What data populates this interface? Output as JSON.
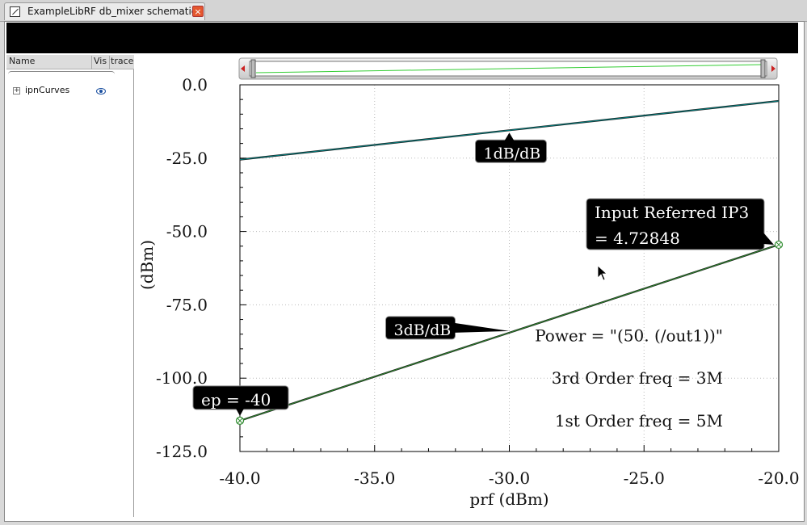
{
  "window": {
    "tab_title": "ExampleLibRF db_mixer schematic",
    "close_glyph": "×"
  },
  "panel": {
    "headers": [
      "Name",
      "Vis",
      "trace"
    ],
    "tree_items": [
      {
        "label": "ipnCurves",
        "expander": "+",
        "visible": true
      }
    ]
  },
  "chart_data": {
    "type": "line",
    "xlabel": "prf (dBm)",
    "ylabel": "(dBm)",
    "xlim": [
      -40,
      -20
    ],
    "ylim": [
      -125,
      0
    ],
    "x_ticks": [
      "-40.0",
      "-35.0",
      "-30.0",
      "-25.0",
      "-20.0"
    ],
    "y_ticks": [
      "0.0",
      "-25.0",
      "-50.0",
      "-75.0",
      "-100.0",
      "-125.0"
    ],
    "grid": true,
    "series": [
      {
        "x": [
          -40,
          -20
        ],
        "y": [
          -25.5,
          -5.5
        ],
        "color": "#008080",
        "slope_label": "1dB/dB"
      },
      {
        "x": [
          -40,
          -20
        ],
        "y": [
          -114.5,
          -54.5
        ],
        "color": "#2e8b2e",
        "slope_label": "3dB/dB"
      }
    ],
    "markers": [
      {
        "x": -40,
        "y": -114.5,
        "label": "ep = -40"
      },
      {
        "x": -20,
        "y": -54.5,
        "label": [
          "Input Referred IP3",
          " = 4.72848"
        ]
      }
    ],
    "annotations": [
      "Power = \"(50. (/out1))\"",
      "3rd Order freq = 3M",
      "1st Order freq = 5M"
    ],
    "accent_colors": {
      "line1": "#008080",
      "line2": "#2e8b2e",
      "marker": "#2e8b2e",
      "label_bg": "#000000"
    }
  }
}
